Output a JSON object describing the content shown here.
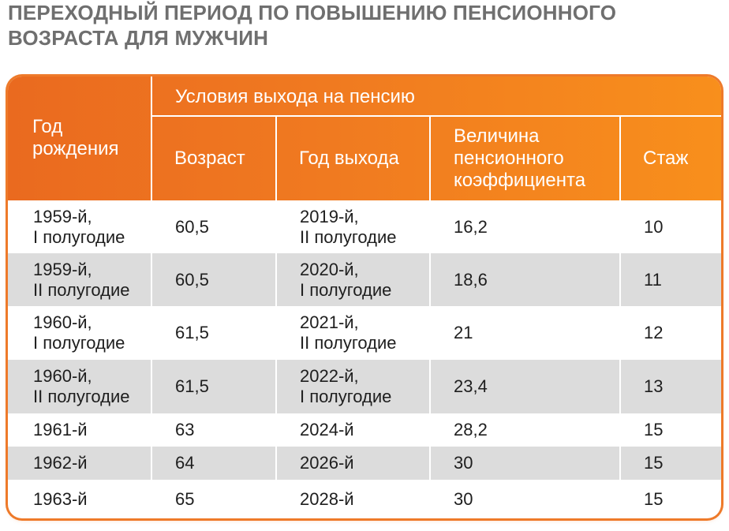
{
  "title": {
    "line1": "ПЕРЕХОДНЫЙ ПЕРИОД ПО ПОВЫШЕНИЮ ПЕНСИОННОГО",
    "line2": "ВОЗРАСТА ДЛЯ МУЖЧИН"
  },
  "colors": {
    "header_start": "#ea6a1f",
    "header_end": "#f88f1c",
    "row_shade": "#dcdcdc",
    "title_text": "#6f6f6f"
  },
  "header": {
    "birth_year": [
      "Год",
      "рождения"
    ],
    "group": "Условия выхода на пенсию",
    "age": "Возраст",
    "exit_year": "Год выхода",
    "coefficient": [
      "Величина",
      "пенсионного",
      "коэффициента"
    ],
    "experience": "Стаж"
  },
  "rows": [
    {
      "birth": [
        "1959-й,",
        "I полугодие"
      ],
      "age": "60,5",
      "exit": [
        "2019-й,",
        "II полугодие"
      ],
      "coef": "16,2",
      "exp": "10"
    },
    {
      "birth": [
        "1959-й,",
        "II полугодие"
      ],
      "age": "60,5",
      "exit": [
        "2020-й,",
        "I полугодие"
      ],
      "coef": "18,6",
      "exp": "11"
    },
    {
      "birth": [
        "1960-й,",
        "I полугодие"
      ],
      "age": "61,5",
      "exit": [
        "2021-й,",
        "II полугодие"
      ],
      "coef": "21",
      "exp": "12"
    },
    {
      "birth": [
        "1960-й,",
        "II полугодие"
      ],
      "age": "61,5",
      "exit": [
        "2022-й,",
        "I полугодие"
      ],
      "coef": "23,4",
      "exp": "13"
    },
    {
      "birth": [
        "1961-й"
      ],
      "age": "63",
      "exit": [
        "2024-й"
      ],
      "coef": "28,2",
      "exp": "15"
    },
    {
      "birth": [
        "1962-й"
      ],
      "age": "64",
      "exit": [
        "2026-й"
      ],
      "coef": "30",
      "exp": "15"
    },
    {
      "birth": [
        "1963-й"
      ],
      "age": "65",
      "exit": [
        "2028-й"
      ],
      "coef": "30",
      "exp": "15"
    }
  ]
}
